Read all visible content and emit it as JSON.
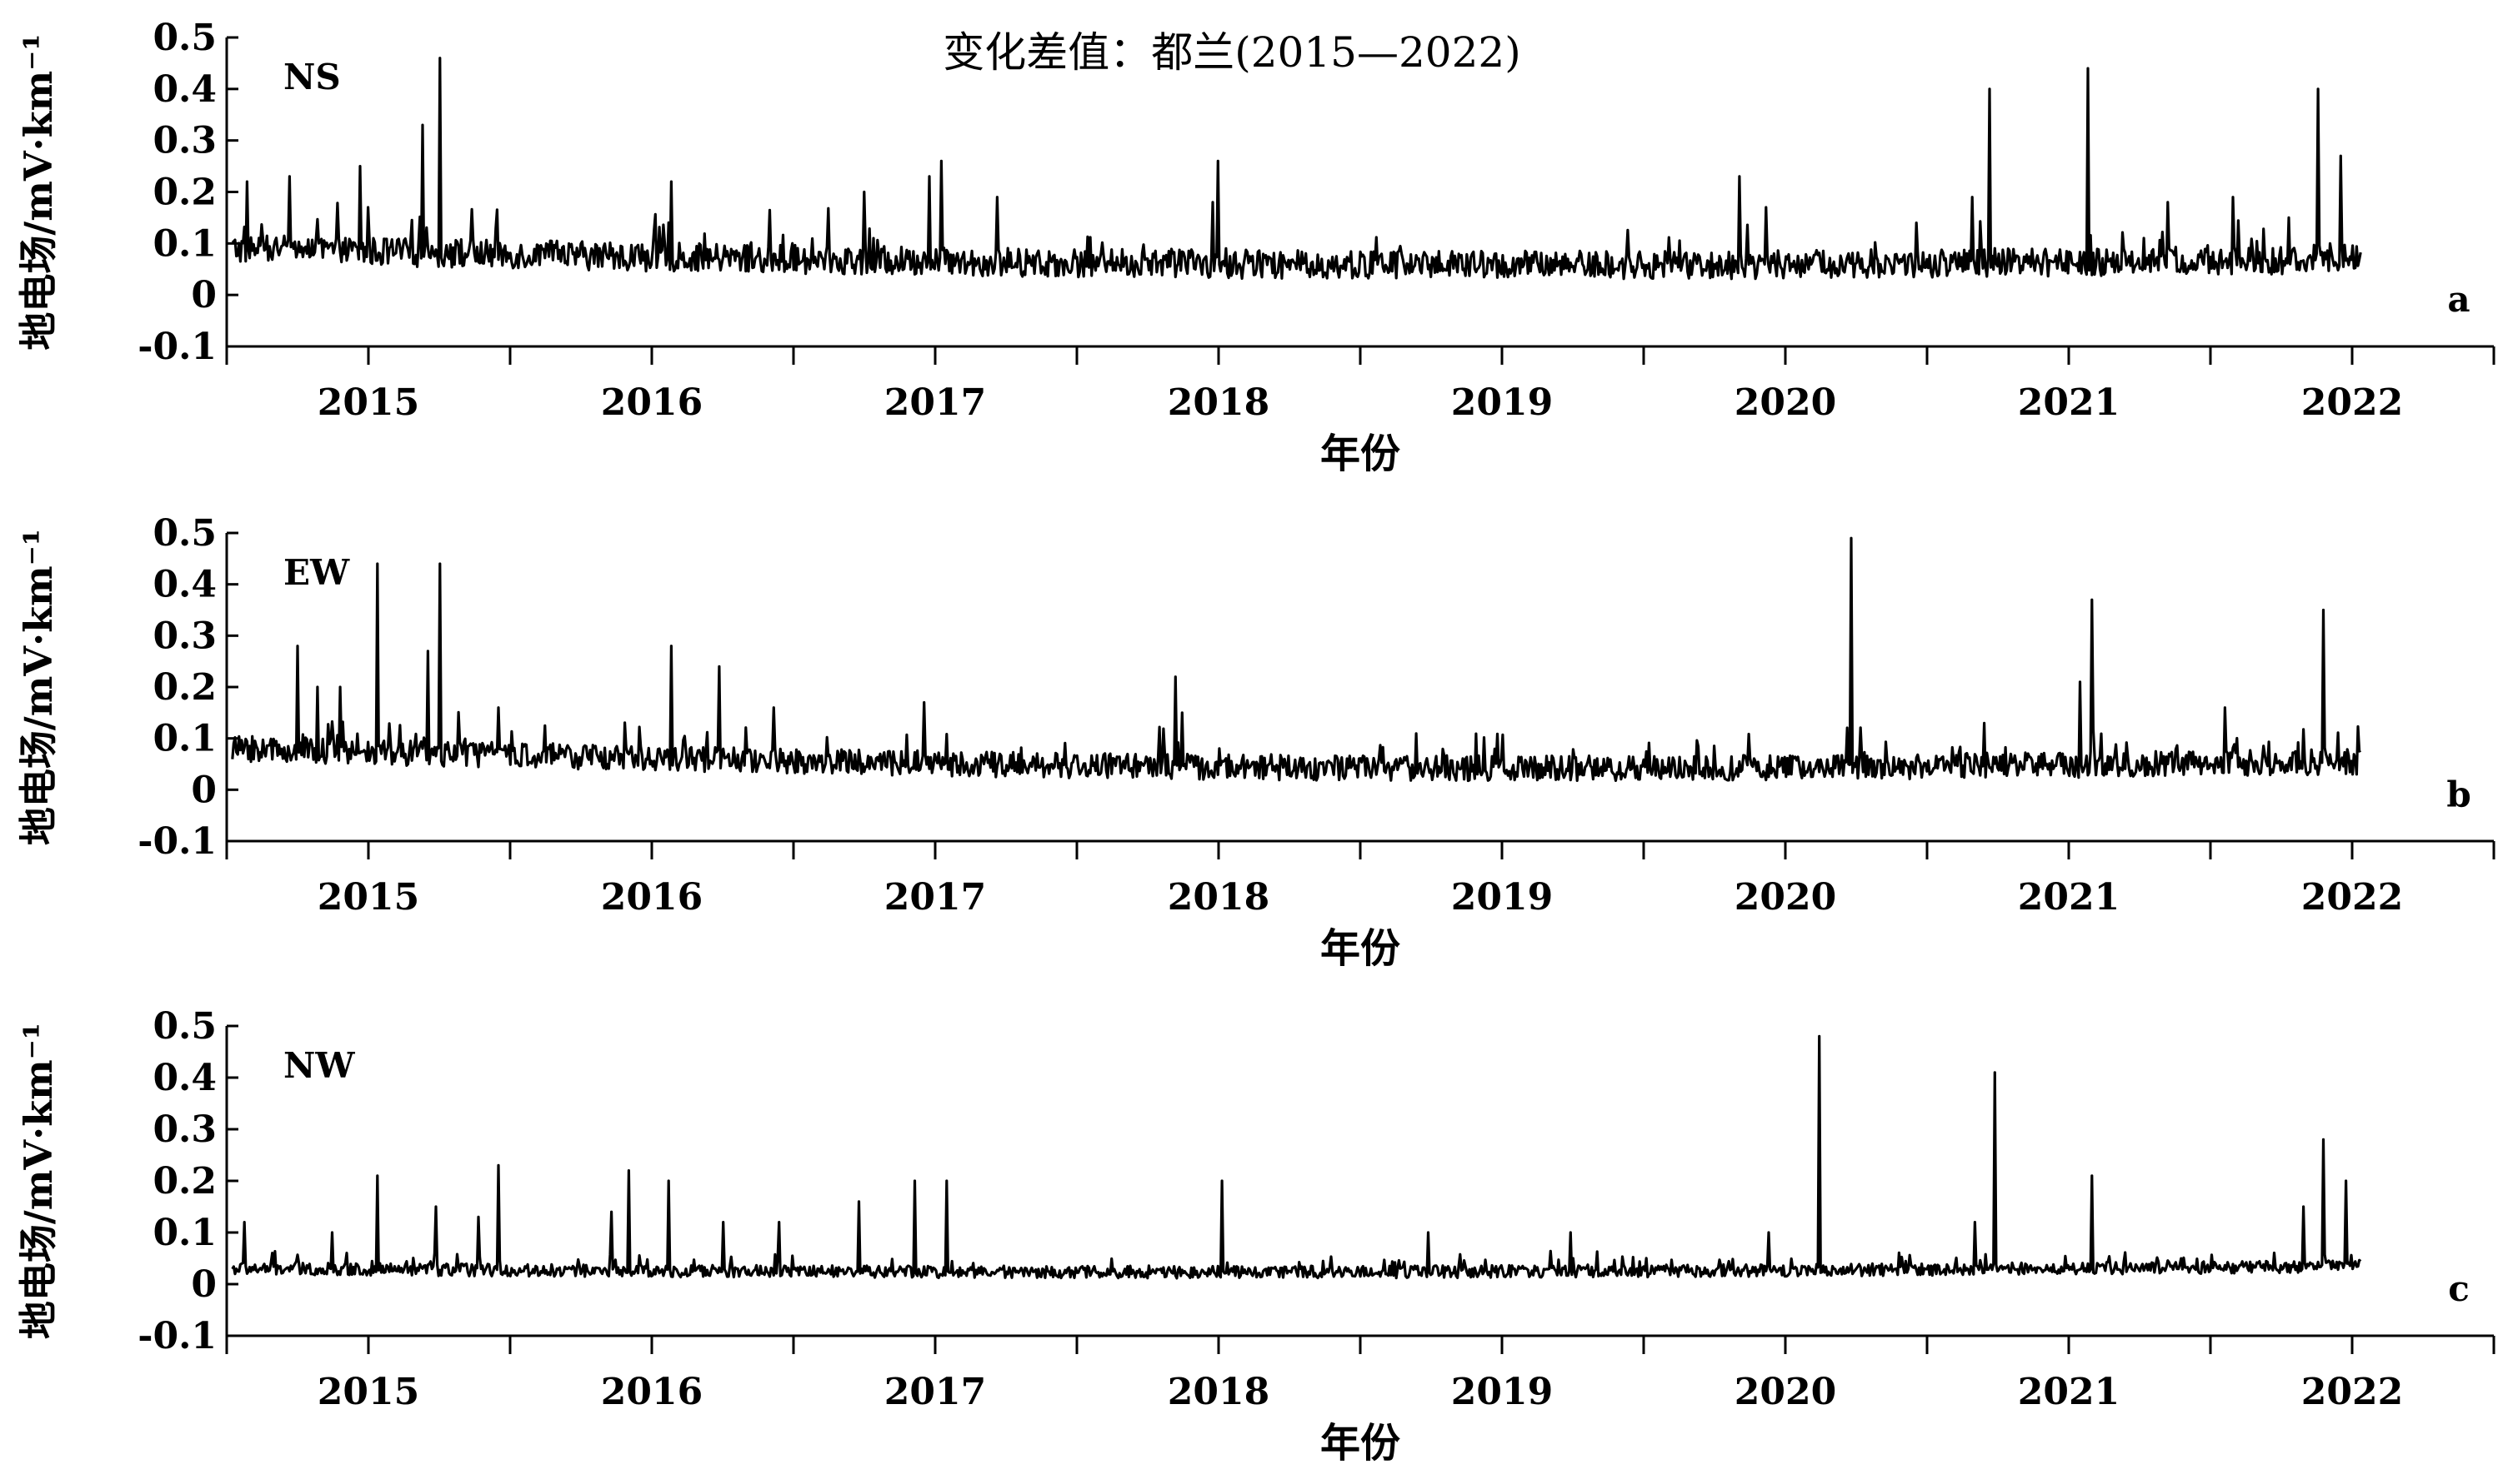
{
  "title": "变化差值：都兰(2015—2022)",
  "chart_data": [
    {
      "type": "line",
      "panel_letter": "a",
      "component": "NS",
      "xlabel": "年份",
      "ylabel": "地电场/mV·km⁻¹",
      "ylim": [
        -0.1,
        0.5
      ],
      "yticks": [
        "0.5",
        "0.4",
        "0.3",
        "0.2",
        "0.1",
        "0",
        "-0.1"
      ],
      "xlim": [
        2014.5,
        2022.5
      ],
      "xticks": [
        "2015",
        "2016",
        "2017",
        "2018",
        "2019",
        "2020",
        "2021",
        "2022"
      ],
      "baseline": {
        "start": 0.09,
        "end": 0.07,
        "low_mid": 0.055,
        "noise": 0.028
      },
      "spikes": [
        [
          2015.19,
          0.33
        ],
        [
          2015.25,
          0.46
        ],
        [
          2014.57,
          0.22
        ],
        [
          2014.72,
          0.23
        ],
        [
          2014.97,
          0.25
        ],
        [
          2015.0,
          0.17
        ],
        [
          2016.07,
          0.22
        ],
        [
          2016.75,
          0.2
        ],
        [
          2016.98,
          0.23
        ],
        [
          2017.02,
          0.26
        ],
        [
          2017.22,
          0.19
        ],
        [
          2017.98,
          0.18
        ],
        [
          2018.0,
          0.26
        ],
        [
          2019.84,
          0.23
        ],
        [
          2019.93,
          0.17
        ],
        [
          2020.72,
          0.4
        ],
        [
          2021.07,
          0.44
        ],
        [
          2021.35,
          0.18
        ],
        [
          2021.58,
          0.19
        ],
        [
          2021.88,
          0.4
        ],
        [
          2021.96,
          0.27
        ],
        [
          2020.66,
          0.19
        ]
      ]
    },
    {
      "type": "line",
      "panel_letter": "b",
      "component": "EW",
      "xlabel": "年份",
      "ylabel": "地电场/mV·km⁻¹",
      "ylim": [
        -0.1,
        0.5
      ],
      "yticks": [
        "0.5",
        "0.4",
        "0.3",
        "0.2",
        "0.1",
        "0",
        "-0.1"
      ],
      "xlim": [
        2014.5,
        2022.5
      ],
      "xticks": [
        "2015",
        "2016",
        "2017",
        "2018",
        "2019",
        "2020",
        "2021",
        "2022"
      ],
      "baseline": {
        "start": 0.08,
        "end": 0.055,
        "low_mid": 0.04,
        "noise": 0.025
      },
      "spikes": [
        [
          2014.75,
          0.28
        ],
        [
          2014.82,
          0.2
        ],
        [
          2014.9,
          0.2
        ],
        [
          2015.03,
          0.44
        ],
        [
          2015.21,
          0.27
        ],
        [
          2015.25,
          0.44
        ],
        [
          2015.46,
          0.16
        ],
        [
          2016.07,
          0.28
        ],
        [
          2016.24,
          0.24
        ],
        [
          2016.43,
          0.16
        ],
        [
          2016.96,
          0.17
        ],
        [
          2017.85,
          0.22
        ],
        [
          2017.87,
          0.15
        ],
        [
          2020.23,
          0.49
        ],
        [
          2021.04,
          0.21
        ],
        [
          2021.08,
          0.37
        ],
        [
          2021.55,
          0.16
        ],
        [
          2021.9,
          0.35
        ]
      ]
    },
    {
      "type": "line",
      "panel_letter": "c",
      "component": "NW",
      "xlabel": "年份",
      "ylabel": "地电场/mV·km⁻¹",
      "ylim": [
        -0.1,
        0.5
      ],
      "yticks": [
        "0.5",
        "0.4",
        "0.3",
        "0.2",
        "0.1",
        "0",
        "-0.1"
      ],
      "xlim": [
        2014.5,
        2022.5
      ],
      "xticks": [
        "2015",
        "2016",
        "2017",
        "2018",
        "2019",
        "2020",
        "2021",
        "2022"
      ],
      "baseline": {
        "start": 0.03,
        "end": 0.035,
        "low_mid": 0.015,
        "noise": 0.012
      },
      "spikes": [
        [
          2014.56,
          0.12
        ],
        [
          2014.87,
          0.1
        ],
        [
          2015.03,
          0.21
        ],
        [
          2015.24,
          0.15
        ],
        [
          2015.46,
          0.23
        ],
        [
          2015.39,
          0.13
        ],
        [
          2015.86,
          0.14
        ],
        [
          2015.92,
          0.22
        ],
        [
          2016.06,
          0.2
        ],
        [
          2016.25,
          0.12
        ],
        [
          2016.45,
          0.12
        ],
        [
          2016.73,
          0.16
        ],
        [
          2016.93,
          0.2
        ],
        [
          2017.04,
          0.2
        ],
        [
          2018.01,
          0.2
        ],
        [
          2018.74,
          0.1
        ],
        [
          2019.24,
          0.1
        ],
        [
          2019.94,
          0.1
        ],
        [
          2020.12,
          0.48
        ],
        [
          2020.67,
          0.12
        ],
        [
          2020.74,
          0.41
        ],
        [
          2021.08,
          0.21
        ],
        [
          2021.83,
          0.15
        ],
        [
          2021.9,
          0.28
        ],
        [
          2021.98,
          0.2
        ]
      ]
    }
  ]
}
